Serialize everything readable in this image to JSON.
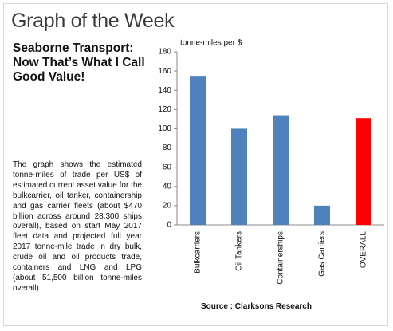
{
  "header": "Graph of the Week",
  "headline": "Seaborne Transport: Now That’s What I Call Good Value!",
  "body": "The graph shows the estimated tonne-miles of trade per US$ of estimated current asset value for the bulkcarrier, oil tanker, containership and gas carrier fleets (about $470 billion across around 28,300 ships overall), based on start May 2017 fleet data and projected full year 2017 tonne-mile trade in dry bulk, crude oil and oil products trade, containers and LNG and LPG (about 51,500 billion tonne-miles overall).",
  "source": "Source : Clarksons Research",
  "chart_data": {
    "type": "bar",
    "y_label": "tonne-miles per $",
    "categories": [
      "Bulkcarriers",
      "Oil Tankers",
      "Containerships",
      "Gas Carriers",
      "OVERALL"
    ],
    "values": [
      155,
      100,
      114,
      20,
      111
    ],
    "colors": [
      "#4f81bd",
      "#4f81bd",
      "#4f81bd",
      "#4f81bd",
      "#ff0000"
    ],
    "ylim": [
      0,
      180
    ],
    "yticks": [
      0,
      20,
      40,
      60,
      80,
      100,
      120,
      140,
      160,
      180
    ],
    "grid": false
  }
}
